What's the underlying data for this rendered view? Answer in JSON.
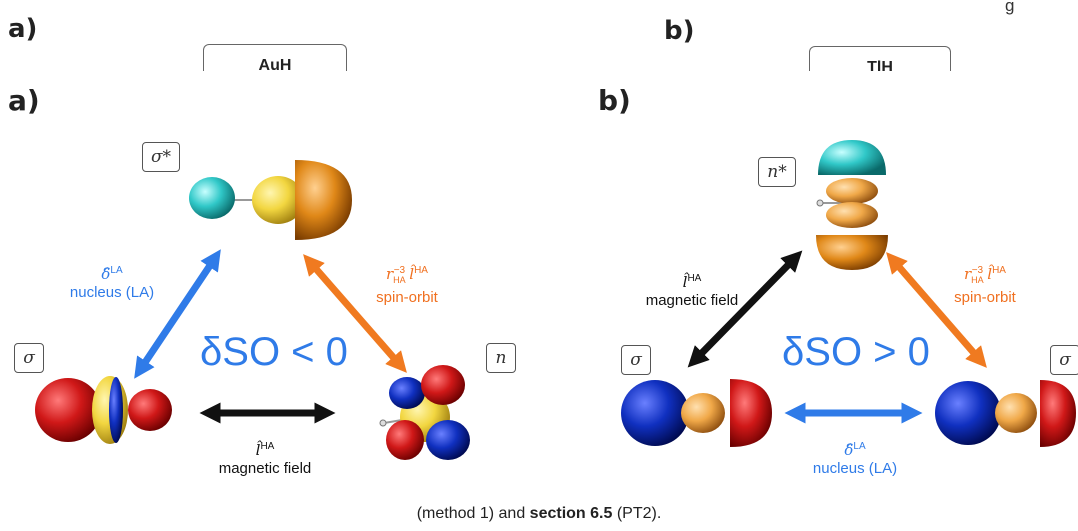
{
  "header": {
    "label_a_top": "a)",
    "label_b_top": "b)",
    "top_right_text": "g",
    "title_a": "AuH",
    "title_b": "TlH"
  },
  "panel_a": {
    "label": "a)",
    "orbital_top": "σ*",
    "orbital_left": "σ",
    "orbital_right": "n",
    "left_arrow_symbol": "δ̂",
    "left_arrow_sup": "LA",
    "left_arrow_text": "nucleus (LA)",
    "right_arrow_symbol": "r",
    "right_arrow_sub": "HA",
    "right_arrow_exp": "−3",
    "right_arrow_l": "l̂",
    "right_arrow_sup": "HA",
    "right_arrow_text": "spin-orbit",
    "bottom_arrow_symbol": "l̂",
    "bottom_arrow_sup": "HA",
    "bottom_arrow_text": "magnetic field",
    "delta_text": "δSO < 0"
  },
  "panel_b": {
    "label": "b)",
    "orbital_top": "n*",
    "orbital_left": "σ",
    "orbital_right": "σ",
    "left_arrow_symbol": "l̂",
    "left_arrow_sup": "HA",
    "left_arrow_text": "magnetic field",
    "right_arrow_symbol": "r",
    "right_arrow_sub": "HA",
    "right_arrow_exp": "−3",
    "right_arrow_l": "l̂",
    "right_arrow_sup": "HA",
    "right_arrow_text": "spin-orbit",
    "bottom_arrow_symbol": "δ̂",
    "bottom_arrow_sup": "LA",
    "bottom_arrow_text": "nucleus (LA)",
    "delta_text": "δSO > 0"
  },
  "caption": {
    "pre": "(method 1) and ",
    "bold": "section 6.5",
    "post": " (PT2)."
  },
  "colors": {
    "blue_arrow": "#2f7be8",
    "orange_arrow": "#f07a20",
    "black_arrow": "#111111",
    "lobe_red": "#d01818",
    "lobe_blue": "#1030c0",
    "lobe_cyan": "#30c8c8",
    "lobe_yellow": "#f2d640",
    "lobe_orange": "#e08818"
  }
}
